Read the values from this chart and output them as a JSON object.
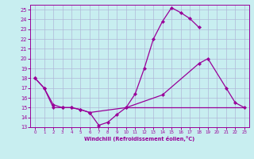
{
  "xlabel": "Windchill (Refroidissement éolien,°C)",
  "bg_color": "#c8eef0",
  "grid_color": "#b0b8d8",
  "line_color": "#990099",
  "xlim": [
    -0.5,
    23.5
  ],
  "ylim": [
    13,
    25.5
  ],
  "xticks": [
    0,
    1,
    2,
    3,
    4,
    5,
    6,
    7,
    8,
    9,
    10,
    11,
    12,
    13,
    14,
    15,
    16,
    17,
    18,
    19,
    20,
    21,
    22,
    23
  ],
  "yticks": [
    13,
    14,
    15,
    16,
    17,
    18,
    19,
    20,
    21,
    22,
    23,
    24,
    25
  ],
  "line1": {
    "x": [
      0,
      1,
      2,
      3,
      4,
      5,
      6,
      7,
      8,
      9,
      10,
      11,
      12,
      13,
      14,
      15,
      16,
      17,
      18
    ],
    "y": [
      18,
      17,
      15,
      15,
      15,
      14.8,
      14.5,
      13.2,
      13.5,
      14.3,
      15,
      16.4,
      19,
      22,
      23.8,
      25.2,
      24.7,
      24.1,
      23.2
    ]
  },
  "line2": {
    "x": [
      0,
      1,
      2,
      3,
      4,
      5,
      6,
      10,
      14,
      18,
      19,
      21,
      22,
      23
    ],
    "y": [
      18,
      17,
      15.3,
      15,
      15,
      14.8,
      14.5,
      15,
      16.3,
      19.5,
      20,
      17,
      15.5,
      15
    ]
  },
  "line3": {
    "x": [
      10,
      23
    ],
    "y": [
      15,
      15
    ]
  }
}
